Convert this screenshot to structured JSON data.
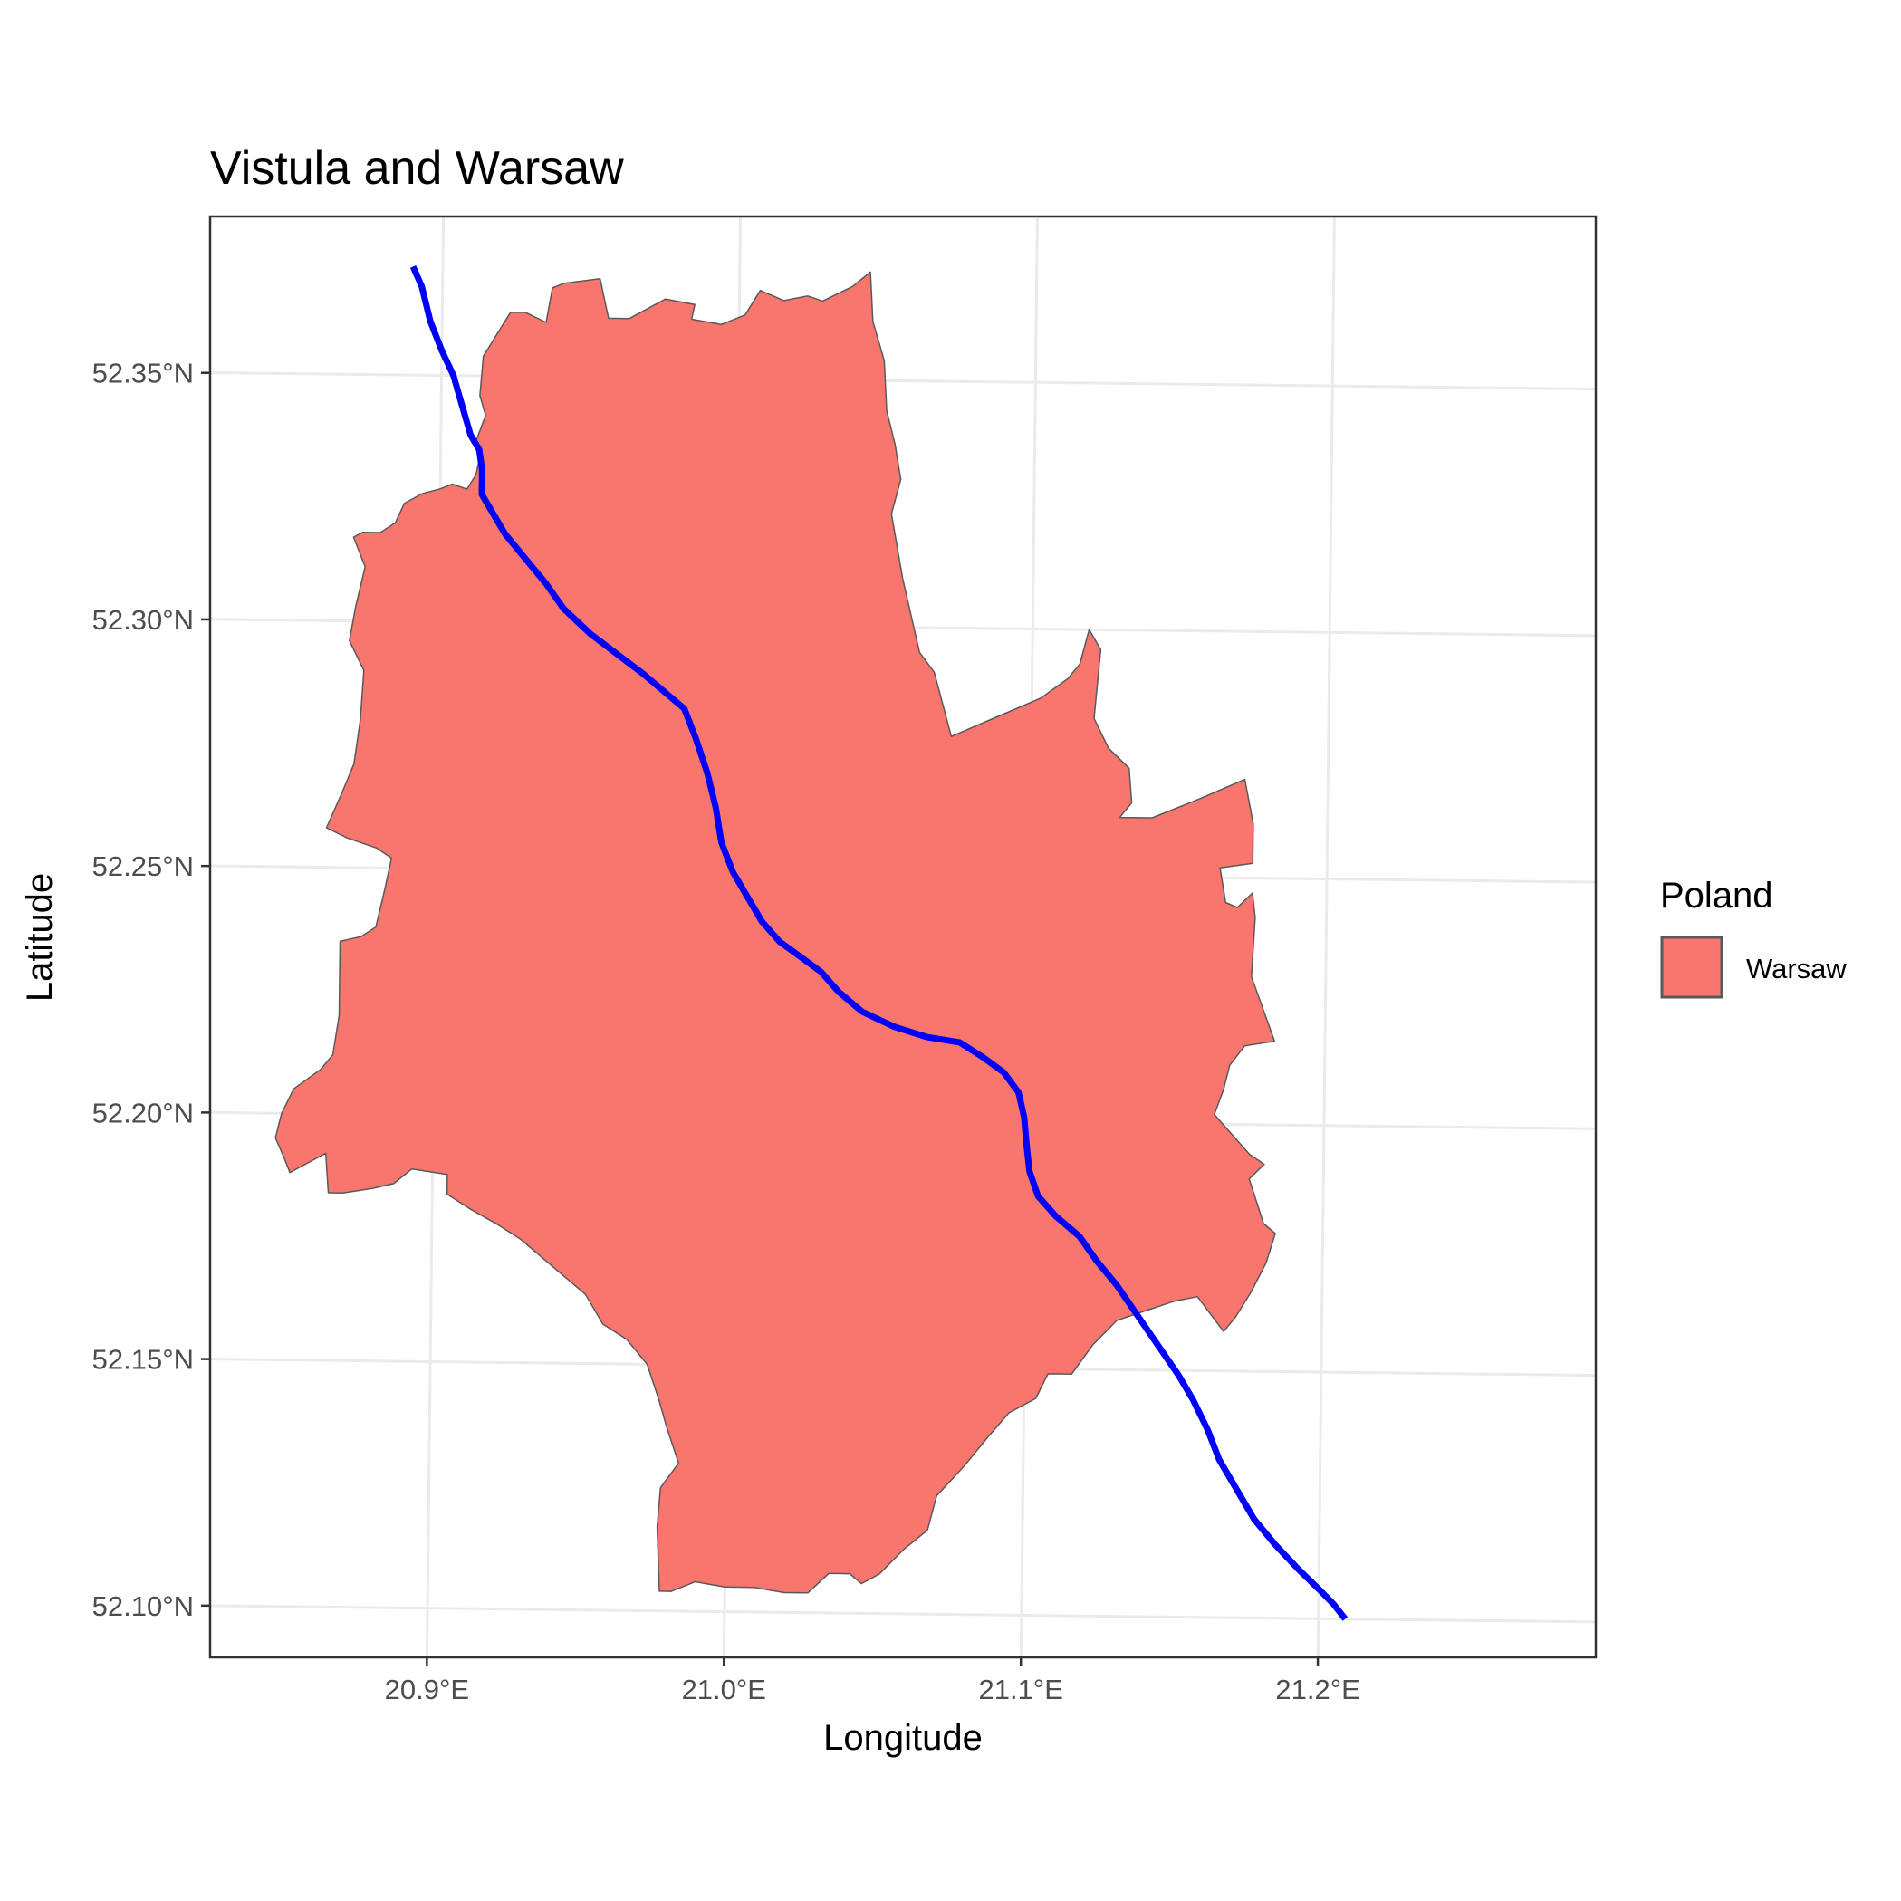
{
  "chart_data": {
    "type": "map",
    "title": "Vistula and Warsaw",
    "xlabel": "Longitude",
    "ylabel": "Latitude",
    "xlim": [
      20.827,
      21.288
    ],
    "ylim": [
      52.0895,
      52.385
    ],
    "x_ticks": [
      {
        "value": 20.9,
        "label": "20.9°E"
      },
      {
        "value": 21.0,
        "label": "21.0°E"
      },
      {
        "value": 21.1,
        "label": "21.1°E"
      },
      {
        "value": 21.2,
        "label": "21.2°E"
      }
    ],
    "y_ticks": [
      {
        "value": 52.35,
        "label": "52.35°N"
      },
      {
        "value": 52.3,
        "label": "52.30°N"
      },
      {
        "value": 52.25,
        "label": "52.25°N"
      },
      {
        "value": 52.2,
        "label": "52.20°N"
      },
      {
        "value": 52.15,
        "label": "52.15°N"
      },
      {
        "value": 52.1,
        "label": "52.10°N"
      }
    ],
    "grid": true,
    "legend": {
      "title": "Poland",
      "position": "right",
      "entries": [
        {
          "label": "Warsaw",
          "color": "#f8766d"
        }
      ]
    },
    "layers": [
      {
        "kind": "polygon",
        "label": "Warsaw",
        "fill": "#f8766d",
        "stroke": "#595959",
        "coordinates": [
          [
            20.914,
            52.354
          ],
          [
            20.923,
            52.363
          ],
          [
            20.928,
            52.363
          ],
          [
            20.935,
            52.361
          ],
          [
            20.937,
            52.368
          ],
          [
            20.941,
            52.369
          ],
          [
            20.953,
            52.37
          ],
          [
            20.956,
            52.362
          ],
          [
            20.963,
            52.362
          ],
          [
            20.975,
            52.366
          ],
          [
            20.985,
            52.365
          ],
          [
            20.984,
            52.362
          ],
          [
            20.994,
            52.361
          ],
          [
            21.002,
            52.363
          ],
          [
            21.007,
            52.368
          ],
          [
            21.015,
            52.366
          ],
          [
            21.023,
            52.367
          ],
          [
            21.028,
            52.366
          ],
          [
            21.038,
            52.369
          ],
          [
            21.044,
            52.372
          ],
          [
            21.045,
            52.362
          ],
          [
            21.049,
            52.354
          ],
          [
            21.05,
            52.344
          ],
          [
            21.053,
            52.337
          ],
          [
            21.055,
            52.33
          ],
          [
            21.052,
            52.323
          ],
          [
            21.056,
            52.31
          ],
          [
            21.058,
            52.305
          ],
          [
            21.062,
            52.295
          ],
          [
            21.067,
            52.291
          ],
          [
            21.073,
            52.278
          ],
          [
            21.088,
            52.282
          ],
          [
            21.103,
            52.286
          ],
          [
            21.112,
            52.29
          ],
          [
            21.116,
            52.293
          ],
          [
            21.119,
            52.3
          ],
          [
            21.123,
            52.296
          ],
          [
            21.121,
            52.282
          ],
          [
            21.126,
            52.276
          ],
          [
            21.133,
            52.272
          ],
          [
            21.134,
            52.265
          ],
          [
            21.13,
            52.262
          ],
          [
            21.141,
            52.262
          ],
          [
            21.157,
            52.266
          ],
          [
            21.172,
            52.27
          ],
          [
            21.175,
            52.261
          ],
          [
            21.175,
            52.253
          ],
          [
            21.164,
            52.252
          ],
          [
            21.166,
            52.245
          ],
          [
            21.17,
            52.244
          ],
          [
            21.175,
            52.247
          ],
          [
            21.176,
            52.242
          ],
          [
            21.175,
            52.23
          ],
          [
            21.183,
            52.217
          ],
          [
            21.173,
            52.216
          ],
          [
            21.168,
            52.212
          ],
          [
            21.166,
            52.207
          ],
          [
            21.163,
            52.202
          ],
          [
            21.175,
            52.194
          ],
          [
            21.18,
            52.192
          ],
          [
            21.175,
            52.189
          ],
          [
            21.18,
            52.18
          ],
          [
            21.184,
            52.178
          ],
          [
            21.181,
            52.172
          ],
          [
            21.176,
            52.166
          ],
          [
            21.171,
            52.161
          ],
          [
            21.167,
            52.158
          ],
          [
            21.158,
            52.165
          ],
          [
            21.15,
            52.164
          ],
          [
            21.131,
            52.16
          ],
          [
            21.123,
            52.155
          ],
          [
            21.116,
            52.149
          ],
          [
            21.108,
            52.149
          ],
          [
            21.104,
            52.144
          ],
          [
            21.095,
            52.141
          ],
          [
            21.088,
            52.136
          ],
          [
            21.08,
            52.13
          ],
          [
            21.071,
            52.124
          ],
          [
            21.068,
            52.117
          ],
          [
            21.06,
            52.113
          ],
          [
            21.052,
            52.108
          ],
          [
            21.046,
            52.106
          ],
          [
            21.042,
            52.108
          ],
          [
            21.035,
            52.108
          ],
          [
            21.028,
            52.104
          ],
          [
            21.02,
            52.104
          ],
          [
            21.01,
            52.105
          ],
          [
            21.0,
            52.105
          ],
          [
            20.99,
            52.106
          ],
          [
            20.982,
            52.104
          ],
          [
            20.978,
            52.104
          ],
          [
            20.977,
            52.117
          ],
          [
            20.978,
            52.125
          ],
          [
            20.984,
            52.13
          ],
          [
            20.98,
            52.137
          ],
          [
            20.977,
            52.143
          ],
          [
            20.973,
            52.15
          ],
          [
            20.966,
            52.155
          ],
          [
            20.958,
            52.158
          ],
          [
            20.952,
            52.164
          ],
          [
            20.946,
            52.167
          ],
          [
            20.938,
            52.171
          ],
          [
            20.93,
            52.175
          ],
          [
            20.922,
            52.178
          ],
          [
            20.913,
            52.181
          ],
          [
            20.905,
            52.184
          ],
          [
            20.905,
            52.188
          ],
          [
            20.893,
            52.189
          ],
          [
            20.887,
            52.186
          ],
          [
            20.88,
            52.185
          ],
          [
            20.87,
            52.184
          ],
          [
            20.865,
            52.184
          ],
          [
            20.864,
            52.192
          ],
          [
            20.858,
            52.19
          ],
          [
            20.852,
            52.188
          ],
          [
            20.85,
            52.191
          ],
          [
            20.847,
            52.195
          ],
          [
            20.849,
            52.2
          ],
          [
            20.853,
            52.205
          ],
          [
            20.862,
            52.209
          ],
          [
            20.866,
            52.212
          ],
          [
            20.868,
            52.22
          ],
          [
            20.868,
            52.228
          ],
          [
            20.868,
            52.235
          ],
          [
            20.875,
            52.236
          ],
          [
            20.88,
            52.238
          ],
          [
            20.883,
            52.246
          ],
          [
            20.885,
            52.252
          ],
          [
            20.88,
            52.254
          ],
          [
            20.87,
            52.256
          ],
          [
            20.863,
            52.258
          ],
          [
            20.868,
            52.265
          ],
          [
            20.872,
            52.271
          ],
          [
            20.874,
            52.28
          ],
          [
            20.875,
            52.29
          ],
          [
            20.87,
            52.296
          ],
          [
            20.872,
            52.303
          ],
          [
            20.875,
            52.311
          ],
          [
            20.871,
            52.317
          ],
          [
            20.874,
            52.318
          ],
          [
            20.88,
            52.318
          ],
          [
            20.885,
            52.32
          ],
          [
            20.888,
            52.324
          ],
          [
            20.894,
            52.326
          ],
          [
            20.9,
            52.327
          ],
          [
            20.904,
            52.328
          ],
          [
            20.909,
            52.327
          ],
          [
            20.912,
            52.33
          ],
          [
            20.913,
            52.333
          ],
          [
            20.912,
            52.337
          ],
          [
            20.915,
            52.342
          ],
          [
            20.913,
            52.346
          ],
          [
            20.914,
            52.354
          ]
        ]
      },
      {
        "kind": "line",
        "label": "Vistula",
        "stroke": "#0000ff",
        "coordinates": [
          [
            20.89,
            52.372
          ],
          [
            20.893,
            52.368
          ],
          [
            20.896,
            52.361
          ],
          [
            20.9,
            52.355
          ],
          [
            20.904,
            52.35
          ],
          [
            20.907,
            52.344
          ],
          [
            20.91,
            52.338
          ],
          [
            20.913,
            52.335
          ],
          [
            20.914,
            52.331
          ],
          [
            20.914,
            52.326
          ],
          [
            20.918,
            52.322
          ],
          [
            20.922,
            52.318
          ],
          [
            20.929,
            52.313
          ],
          [
            20.936,
            52.308
          ],
          [
            20.942,
            52.303
          ],
          [
            20.951,
            52.298
          ],
          [
            20.96,
            52.294
          ],
          [
            20.969,
            52.29
          ],
          [
            20.977,
            52.286
          ],
          [
            20.983,
            52.283
          ],
          [
            20.987,
            52.277
          ],
          [
            20.991,
            52.27
          ],
          [
            20.994,
            52.263
          ],
          [
            20.996,
            52.256
          ],
          [
            21.0,
            52.25
          ],
          [
            21.005,
            52.245
          ],
          [
            21.01,
            52.24
          ],
          [
            21.016,
            52.236
          ],
          [
            21.023,
            52.233
          ],
          [
            21.03,
            52.23
          ],
          [
            21.036,
            52.226
          ],
          [
            21.044,
            52.222
          ],
          [
            21.055,
            52.219
          ],
          [
            21.066,
            52.217
          ],
          [
            21.077,
            52.216
          ],
          [
            21.085,
            52.213
          ],
          [
            21.092,
            52.21
          ],
          [
            21.097,
            52.206
          ],
          [
            21.099,
            52.201
          ],
          [
            21.1,
            52.195
          ],
          [
            21.101,
            52.19
          ],
          [
            21.104,
            52.185
          ],
          [
            21.11,
            52.181
          ],
          [
            21.118,
            52.177
          ],
          [
            21.124,
            52.172
          ],
          [
            21.131,
            52.167
          ],
          [
            21.138,
            52.161
          ],
          [
            21.145,
            52.155
          ],
          [
            21.152,
            52.149
          ],
          [
            21.157,
            52.144
          ],
          [
            21.162,
            52.138
          ],
          [
            21.166,
            52.132
          ],
          [
            21.172,
            52.126
          ],
          [
            21.178,
            52.12
          ],
          [
            21.185,
            52.115
          ],
          [
            21.193,
            52.11
          ],
          [
            21.2,
            52.106
          ],
          [
            21.205,
            52.103
          ],
          [
            21.209,
            52.1
          ]
        ]
      }
    ]
  }
}
